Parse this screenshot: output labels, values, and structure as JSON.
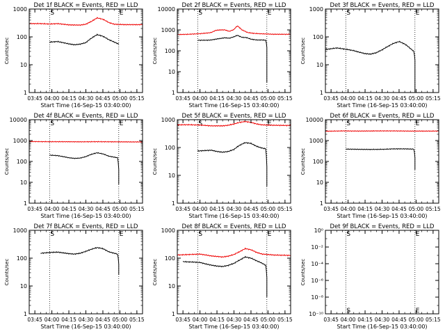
{
  "figure": {
    "x_tick_labels": [
      "03:45",
      "04:00",
      "04:15",
      "04:30",
      "04:45",
      "05:00",
      "05:15"
    ],
    "xlabel": "Start Time (16-Sep-15 03:40:00)",
    "ylabel": "Counts/sec",
    "markers": [
      "S",
      "E"
    ],
    "colors": {
      "events": "#000000",
      "lld": "#ee0000",
      "axes": "#000000",
      "background": "#ffffff"
    }
  },
  "chart_data": [
    {
      "type": "line",
      "title": "Det 1f BLACK = Events, RED = LLD",
      "ylog": true,
      "ylim": [
        1,
        1000
      ],
      "y_tick_labels": [
        "1",
        "10",
        "100",
        "1000"
      ],
      "xlim": [
        "03:40",
        "05:20"
      ],
      "vlines": [
        "03:58",
        "04:59"
      ],
      "series": [
        {
          "name": "Events",
          "color": "#000000",
          "x": [
            "03:58",
            "04:05",
            "04:10",
            "04:15",
            "04:20",
            "04:25",
            "04:30",
            "04:35",
            "04:40",
            "04:45",
            "04:50",
            "04:55",
            "04:59"
          ],
          "y": [
            65,
            68,
            62,
            56,
            52,
            55,
            62,
            90,
            120,
            105,
            80,
            65,
            55
          ]
        },
        {
          "name": "LLD",
          "color": "#ee0000",
          "x": [
            "03:40",
            "03:50",
            "03:58",
            "04:05",
            "04:15",
            "04:25",
            "04:30",
            "04:35",
            "04:40",
            "04:45",
            "04:50",
            "04:55",
            "05:05",
            "05:20"
          ],
          "y": [
            300,
            300,
            290,
            300,
            270,
            265,
            285,
            360,
            480,
            430,
            330,
            285,
            275,
            275
          ]
        }
      ]
    },
    {
      "type": "line",
      "title": "Det 2f BLACK = Events, RED = LLD",
      "ylog": true,
      "ylim": [
        1,
        10000
      ],
      "y_tick_labels": [
        "1",
        "10",
        "100",
        "1000",
        "10000"
      ],
      "xlim": [
        "03:40",
        "05:20"
      ],
      "vlines": [
        "03:58",
        "04:59"
      ],
      "series": [
        {
          "name": "Events",
          "color": "#000000",
          "x": [
            "03:58",
            "04:05",
            "04:10",
            "04:15",
            "04:18",
            "04:22",
            "04:26",
            "04:30",
            "04:33",
            "04:37",
            "04:41",
            "04:45",
            "04:50",
            "04:55",
            "04:58",
            "04:59",
            "04:59"
          ],
          "y": [
            320,
            320,
            330,
            370,
            390,
            420,
            400,
            470,
            550,
            440,
            430,
            360,
            330,
            330,
            320,
            150,
            3
          ]
        },
        {
          "name": "LLD",
          "color": "#ee0000",
          "x": [
            "03:40",
            "03:50",
            "03:58",
            "04:05",
            "04:10",
            "04:14",
            "04:18",
            "04:22",
            "04:26",
            "04:30",
            "04:33",
            "04:37",
            "04:42",
            "04:48",
            "04:55",
            "05:05",
            "05:20"
          ],
          "y": [
            600,
            620,
            650,
            700,
            750,
            950,
            1000,
            1000,
            850,
            1050,
            1550,
            1000,
            750,
            680,
            650,
            620,
            620
          ]
        }
      ]
    },
    {
      "type": "line",
      "title": "Det 3f BLACK = Events, RED = LLD",
      "ylog": true,
      "ylim": [
        1,
        1000
      ],
      "y_tick_labels": [
        "1",
        "10",
        "100",
        "1000"
      ],
      "xlim": [
        "03:40",
        "05:20"
      ],
      "vlines": [
        "03:58",
        "04:59"
      ],
      "series": [
        {
          "name": "Events",
          "color": "#000000",
          "x": [
            "03:40",
            "03:50",
            "03:58",
            "04:05",
            "04:10",
            "04:15",
            "04:20",
            "04:25",
            "04:30",
            "04:35",
            "04:40",
            "04:45",
            "04:50",
            "04:55",
            "04:58",
            "04:59",
            "04:59"
          ],
          "y": [
            35,
            40,
            36,
            32,
            28,
            25,
            24,
            27,
            34,
            45,
            58,
            68,
            55,
            38,
            30,
            15,
            1
          ]
        }
      ]
    },
    {
      "type": "line",
      "title": "Det 4f BLACK = Events, RED = LLD",
      "ylog": true,
      "ylim": [
        1,
        10000
      ],
      "y_tick_labels": [
        "1",
        "10",
        "100",
        "1000",
        "10000"
      ],
      "xlim": [
        "03:40",
        "05:20"
      ],
      "vlines": [
        "03:58",
        "04:59"
      ],
      "series": [
        {
          "name": "Events",
          "color": "#000000",
          "x": [
            "03:58",
            "04:05",
            "04:10",
            "04:15",
            "04:20",
            "04:25",
            "04:30",
            "04:35",
            "04:40",
            "04:45",
            "04:50",
            "04:55",
            "04:58",
            "04:59",
            "04:59"
          ],
          "y": [
            200,
            190,
            170,
            150,
            140,
            145,
            170,
            220,
            260,
            230,
            180,
            160,
            150,
            40,
            8
          ]
        },
        {
          "name": "LLD",
          "color": "#ee0000",
          "x": [
            "03:40",
            "03:55",
            "04:10",
            "04:25",
            "04:40",
            "04:55",
            "05:10",
            "05:20"
          ],
          "y": [
            900,
            880,
            880,
            870,
            880,
            870,
            860,
            860
          ]
        }
      ]
    },
    {
      "type": "line",
      "title": "Det 5f BLACK = Events, RED = LLD",
      "ylog": true,
      "ylim": [
        1,
        1000
      ],
      "y_tick_labels": [
        "1",
        "10",
        "100",
        "1000"
      ],
      "xlim": [
        "03:40",
        "05:20"
      ],
      "vlines": [
        "03:58",
        "04:59"
      ],
      "series": [
        {
          "name": "Events",
          "color": "#000000",
          "x": [
            "03:58",
            "04:05",
            "04:10",
            "04:15",
            "04:20",
            "04:25",
            "04:30",
            "04:35",
            "04:40",
            "04:45",
            "04:50",
            "04:55",
            "04:58",
            "04:59",
            "04:59"
          ],
          "y": [
            75,
            78,
            80,
            72,
            68,
            72,
            85,
            120,
            150,
            140,
            110,
            95,
            90,
            20,
            4
          ]
        },
        {
          "name": "LLD",
          "color": "#ee0000",
          "x": [
            "03:40",
            "03:50",
            "04:00",
            "04:10",
            "04:20",
            "04:25",
            "04:30",
            "04:35",
            "04:40",
            "04:45",
            "04:50",
            "04:55",
            "05:05",
            "05:20"
          ],
          "y": [
            650,
            660,
            640,
            600,
            600,
            630,
            700,
            800,
            860,
            800,
            700,
            650,
            630,
            620
          ]
        }
      ]
    },
    {
      "type": "line",
      "title": "Det 6f BLACK = Events, RED = LLD",
      "ylog": true,
      "ylim": [
        1,
        10000
      ],
      "y_tick_labels": [
        "1",
        "10",
        "100",
        "1000",
        "10000"
      ],
      "xlim": [
        "03:40",
        "05:20"
      ],
      "vlines": [
        "03:58",
        "04:59"
      ],
      "series": [
        {
          "name": "Events",
          "color": "#000000",
          "x": [
            "03:58",
            "04:10",
            "04:20",
            "04:30",
            "04:40",
            "04:50",
            "04:58",
            "04:59",
            "04:59"
          ],
          "y": [
            390,
            380,
            375,
            380,
            400,
            400,
            390,
            150,
            40
          ]
        },
        {
          "name": "LLD",
          "color": "#ee0000",
          "x": [
            "03:40",
            "03:55",
            "04:10",
            "04:25",
            "04:40",
            "04:55",
            "05:10",
            "05:20"
          ],
          "y": [
            2800,
            2900,
            2850,
            2900,
            2900,
            2850,
            2850,
            2850
          ]
        }
      ]
    },
    {
      "type": "line",
      "title": "Det 7f BLACK = Events, RED = LLD",
      "ylog": true,
      "ylim": [
        1,
        1000
      ],
      "y_tick_labels": [
        "1",
        "10",
        "100",
        "1000"
      ],
      "xlim": [
        "03:40",
        "05:20"
      ],
      "vlines": [
        "03:58",
        "04:59"
      ],
      "series": [
        {
          "name": "Events",
          "color": "#000000",
          "x": [
            "03:50",
            "03:58",
            "04:05",
            "04:10",
            "04:15",
            "04:20",
            "04:25",
            "04:30",
            "04:35",
            "04:40",
            "04:45",
            "04:50",
            "04:55",
            "04:58",
            "04:59",
            "04:59"
          ],
          "y": [
            150,
            160,
            165,
            155,
            145,
            140,
            150,
            175,
            210,
            240,
            220,
            170,
            150,
            140,
            60,
            25
          ]
        }
      ]
    },
    {
      "type": "line",
      "title": "Det 8f BLACK = Events, RED = LLD",
      "ylog": true,
      "ylim": [
        1,
        1000
      ],
      "y_tick_labels": [
        "1",
        "10",
        "100",
        "1000"
      ],
      "xlim": [
        "03:40",
        "05:20"
      ],
      "vlines": [
        "03:58",
        "04:59"
      ],
      "series": [
        {
          "name": "Events",
          "color": "#000000",
          "x": [
            "03:45",
            "03:55",
            "04:00",
            "04:05",
            "04:10",
            "04:15",
            "04:20",
            "04:25",
            "04:30",
            "04:35",
            "04:40",
            "04:45",
            "04:50",
            "04:55",
            "04:58",
            "04:59",
            "04:59"
          ],
          "y": [
            75,
            72,
            70,
            62,
            56,
            52,
            50,
            55,
            65,
            85,
            110,
            100,
            80,
            65,
            55,
            20,
            4
          ]
        },
        {
          "name": "LLD",
          "color": "#ee0000",
          "x": [
            "03:40",
            "03:50",
            "04:00",
            "04:05",
            "04:10",
            "04:15",
            "04:20",
            "04:25",
            "04:30",
            "04:35",
            "04:40",
            "04:45",
            "04:50",
            "04:55",
            "05:05",
            "05:20"
          ],
          "y": [
            130,
            135,
            140,
            130,
            120,
            115,
            110,
            118,
            135,
            170,
            220,
            200,
            160,
            140,
            130,
            125
          ]
        }
      ]
    },
    {
      "type": "line",
      "title": "Det 9f BLACK = Events, RED = LLD",
      "ylog": true,
      "ylim": [
        1e-10,
        1
      ],
      "y_tick_labels": [
        "10⁻¹⁰",
        "10⁻⁸",
        "10⁻⁶",
        "10⁻⁴",
        "10⁻²",
        "10⁰"
      ],
      "xlim": [
        "03:40",
        "05:20"
      ],
      "vlines": [
        "03:58",
        "04:59"
      ],
      "series": []
    }
  ]
}
